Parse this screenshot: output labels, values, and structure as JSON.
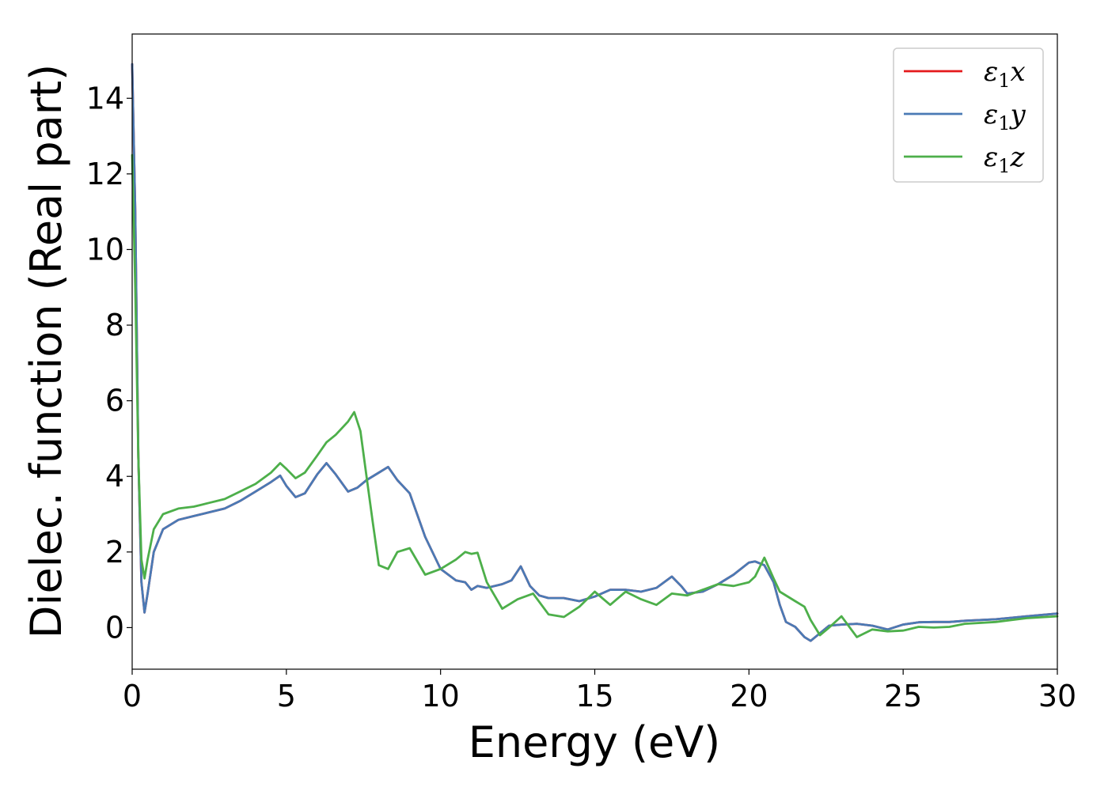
{
  "chart_data": {
    "type": "line",
    "xlabel": "Energy (eV)",
    "ylabel": "Dielec. function (Real part)",
    "xlim": [
      0,
      30
    ],
    "ylim": [
      -1.1,
      15.7
    ],
    "xticks": [
      0,
      5,
      10,
      15,
      20,
      25,
      30
    ],
    "yticks": [
      0,
      2,
      4,
      6,
      8,
      10,
      12,
      14
    ],
    "grid": false,
    "legend_position": "top-right",
    "series": [
      {
        "name": "ε1x",
        "legend": {
          "sym": "ε",
          "sub": "1",
          "axis": "x"
        },
        "color": "#e41a1c",
        "x": [
          0.0,
          0.1,
          0.2,
          0.3,
          0.4,
          0.5,
          0.7,
          1.0,
          1.5,
          2.0,
          2.5,
          3.0,
          3.5,
          4.0,
          4.5,
          4.8,
          5.0,
          5.3,
          5.6,
          6.0,
          6.3,
          6.6,
          7.0,
          7.3,
          7.6,
          8.0,
          8.3,
          8.6,
          9.0,
          9.5,
          10.0,
          10.5,
          10.8,
          11.0,
          11.2,
          11.5,
          12.0,
          12.3,
          12.6,
          12.9,
          13.2,
          13.5,
          14.0,
          14.5,
          15.0,
          15.5,
          16.0,
          16.5,
          17.0,
          17.5,
          17.8,
          18.0,
          18.5,
          19.0,
          19.5,
          20.0,
          20.2,
          20.5,
          20.8,
          21.0,
          21.2,
          21.5,
          21.8,
          22.0,
          22.3,
          22.6,
          23.0,
          23.5,
          24.0,
          24.5,
          25.0,
          25.5,
          26.0,
          26.5,
          27.0,
          28.0,
          29.0,
          30.0
        ],
        "y": [
          14.9,
          11.0,
          4.5,
          1.2,
          0.4,
          0.9,
          2.0,
          2.6,
          2.85,
          2.95,
          3.05,
          3.15,
          3.35,
          3.6,
          3.85,
          4.02,
          3.75,
          3.45,
          3.55,
          4.05,
          4.35,
          4.05,
          3.6,
          3.7,
          3.9,
          4.1,
          4.25,
          3.9,
          3.55,
          2.4,
          1.55,
          1.25,
          1.2,
          1.0,
          1.1,
          1.05,
          1.15,
          1.25,
          1.62,
          1.1,
          0.85,
          0.78,
          0.78,
          0.7,
          0.82,
          1.0,
          1.0,
          0.95,
          1.05,
          1.35,
          1.1,
          0.9,
          0.95,
          1.15,
          1.4,
          1.72,
          1.75,
          1.65,
          1.2,
          0.6,
          0.15,
          0.02,
          -0.25,
          -0.35,
          -0.15,
          0.05,
          0.08,
          0.1,
          0.05,
          -0.05,
          0.08,
          0.14,
          0.15,
          0.15,
          0.18,
          0.22,
          0.3,
          0.37
        ]
      },
      {
        "name": "ε1y",
        "legend": {
          "sym": "ε",
          "sub": "1",
          "axis": "y"
        },
        "color": "#4a7ab5",
        "x": [
          0.0,
          0.1,
          0.2,
          0.3,
          0.4,
          0.5,
          0.7,
          1.0,
          1.5,
          2.0,
          2.5,
          3.0,
          3.5,
          4.0,
          4.5,
          4.8,
          5.0,
          5.3,
          5.6,
          6.0,
          6.3,
          6.6,
          7.0,
          7.3,
          7.6,
          8.0,
          8.3,
          8.6,
          9.0,
          9.5,
          10.0,
          10.5,
          10.8,
          11.0,
          11.2,
          11.5,
          12.0,
          12.3,
          12.6,
          12.9,
          13.2,
          13.5,
          14.0,
          14.5,
          15.0,
          15.5,
          16.0,
          16.5,
          17.0,
          17.5,
          17.8,
          18.0,
          18.5,
          19.0,
          19.5,
          20.0,
          20.2,
          20.5,
          20.8,
          21.0,
          21.2,
          21.5,
          21.8,
          22.0,
          22.3,
          22.6,
          23.0,
          23.5,
          24.0,
          24.5,
          25.0,
          25.5,
          26.0,
          26.5,
          27.0,
          28.0,
          29.0,
          30.0
        ],
        "y": [
          14.9,
          11.0,
          4.5,
          1.2,
          0.4,
          0.9,
          2.0,
          2.6,
          2.85,
          2.95,
          3.05,
          3.15,
          3.35,
          3.6,
          3.85,
          4.02,
          3.75,
          3.45,
          3.55,
          4.05,
          4.35,
          4.05,
          3.6,
          3.7,
          3.9,
          4.1,
          4.25,
          3.9,
          3.55,
          2.4,
          1.55,
          1.25,
          1.2,
          1.0,
          1.1,
          1.05,
          1.15,
          1.25,
          1.62,
          1.1,
          0.85,
          0.78,
          0.78,
          0.7,
          0.82,
          1.0,
          1.0,
          0.95,
          1.05,
          1.35,
          1.1,
          0.9,
          0.95,
          1.15,
          1.4,
          1.72,
          1.75,
          1.65,
          1.2,
          0.6,
          0.15,
          0.02,
          -0.25,
          -0.35,
          -0.15,
          0.05,
          0.08,
          0.1,
          0.05,
          -0.05,
          0.08,
          0.14,
          0.15,
          0.15,
          0.18,
          0.22,
          0.3,
          0.37
        ]
      },
      {
        "name": "ε1z",
        "legend": {
          "sym": "ε",
          "sub": "1",
          "axis": "z"
        },
        "color": "#4daf4a",
        "x": [
          0.0,
          0.1,
          0.2,
          0.3,
          0.4,
          0.5,
          0.7,
          1.0,
          1.5,
          2.0,
          2.5,
          3.0,
          3.5,
          4.0,
          4.5,
          4.8,
          5.0,
          5.3,
          5.6,
          6.0,
          6.3,
          6.6,
          7.0,
          7.2,
          7.4,
          7.6,
          7.8,
          8.0,
          8.3,
          8.6,
          9.0,
          9.5,
          10.0,
          10.5,
          10.8,
          11.0,
          11.2,
          11.5,
          12.0,
          12.5,
          13.0,
          13.5,
          14.0,
          14.5,
          15.0,
          15.5,
          16.0,
          16.5,
          17.0,
          17.5,
          18.0,
          18.5,
          19.0,
          19.5,
          20.0,
          20.2,
          20.5,
          20.8,
          21.0,
          21.5,
          21.8,
          22.0,
          22.3,
          22.6,
          23.0,
          23.5,
          24.0,
          24.5,
          25.0,
          25.5,
          26.0,
          26.5,
          27.0,
          28.0,
          29.0,
          30.0
        ],
        "y": [
          12.5,
          9.0,
          4.5,
          1.8,
          1.3,
          1.8,
          2.6,
          3.0,
          3.15,
          3.2,
          3.3,
          3.4,
          3.6,
          3.8,
          4.1,
          4.35,
          4.2,
          3.95,
          4.1,
          4.55,
          4.9,
          5.1,
          5.45,
          5.7,
          5.2,
          4.0,
          2.8,
          1.65,
          1.55,
          2.0,
          2.1,
          1.4,
          1.55,
          1.8,
          2.0,
          1.95,
          1.98,
          1.2,
          0.5,
          0.75,
          0.9,
          0.35,
          0.28,
          0.55,
          0.95,
          0.6,
          0.95,
          0.75,
          0.6,
          0.9,
          0.85,
          1.0,
          1.15,
          1.1,
          1.2,
          1.35,
          1.85,
          1.3,
          0.95,
          0.7,
          0.55,
          0.2,
          -0.2,
          0.0,
          0.3,
          -0.25,
          -0.05,
          -0.1,
          -0.08,
          0.02,
          0.0,
          0.02,
          0.1,
          0.15,
          0.25,
          0.3
        ]
      }
    ]
  }
}
